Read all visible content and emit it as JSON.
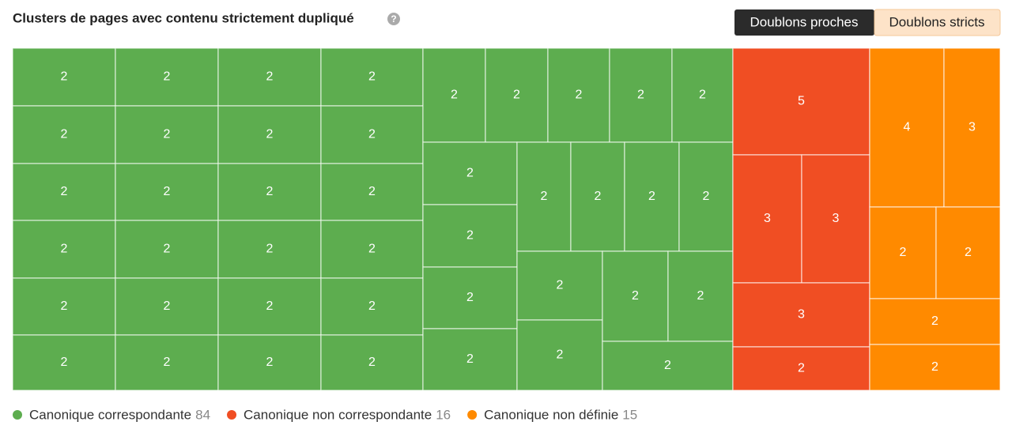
{
  "chart_data": {
    "type": "treemap",
    "title": "Clusters de pages avec contenu strictement dupliqué",
    "series": [
      {
        "name": "Canonique correspondante",
        "total": 84,
        "color": "#5dad4f",
        "values": [
          2,
          2,
          2,
          2,
          2,
          2,
          2,
          2,
          2,
          2,
          2,
          2,
          2,
          2,
          2,
          2,
          2,
          2,
          2,
          2,
          2,
          2,
          2,
          2,
          2,
          2,
          2,
          2,
          2,
          2,
          2,
          2,
          2,
          2,
          2,
          2,
          2,
          2,
          2,
          2,
          2,
          2
        ]
      },
      {
        "name": "Canonique non correspondante",
        "total": 16,
        "color": "#f04e23",
        "values": [
          5,
          3,
          3,
          3,
          2
        ]
      },
      {
        "name": "Canonique non définie",
        "total": 15,
        "color": "#ff8a00",
        "values": [
          4,
          3,
          2,
          2,
          2,
          2
        ]
      }
    ]
  },
  "toggle": [
    "Doublons proches",
    "Doublons stricts"
  ]
}
